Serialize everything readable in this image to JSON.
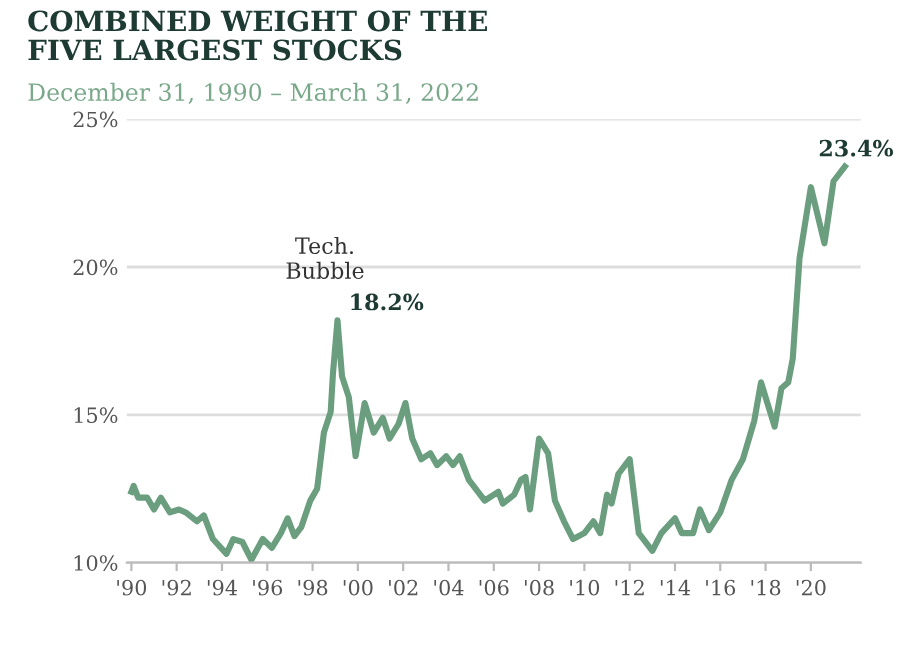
{
  "chart_data": {
    "type": "line",
    "title": "COMBINED WEIGHT OF THE\nFIVE LARGEST STOCKS",
    "subtitle": "December 31, 1990 – March 31, 2022",
    "annotations": [
      "Tech.\nBubble",
      {
        "text": "18.2%",
        "x": 1999.1,
        "y": 18.2
      },
      {
        "text": "23.4%",
        "x": 2021.5,
        "y": 23.4
      }
    ],
    "series": [
      {
        "color": "#6a9e7e",
        "x": [
          1990.0,
          1990.1,
          1990.3,
          1990.7,
          1991.0,
          1991.3,
          1991.7,
          1992.1,
          1992.4,
          1992.9,
          1993.2,
          1993.6,
          1994.2,
          1994.5,
          1994.9,
          1995.3,
          1995.8,
          1996.2,
          1996.6,
          1996.9,
          1997.2,
          1997.5,
          1997.9,
          1998.2,
          1998.5,
          1998.8,
          1998.9,
          1999.1,
          1999.3,
          1999.6,
          1999.9,
          2000.3,
          2000.7,
          2001.1,
          2001.4,
          2001.8,
          2002.1,
          2002.4,
          2002.8,
          2003.2,
          2003.5,
          2003.9,
          2004.2,
          2004.5,
          2004.9,
          2005.6,
          2006.2,
          2006.4,
          2006.9,
          2007.2,
          2007.4,
          2007.6,
          2008.0,
          2008.4,
          2008.7,
          2009.1,
          2009.5,
          2010.0,
          2010.4,
          2010.7,
          2011.0,
          2011.2,
          2011.5,
          2012.0,
          2012.4,
          2013.0,
          2013.4,
          2014.0,
          2014.3,
          2014.8,
          2015.1,
          2015.5,
          2016.0,
          2016.5,
          2017.0,
          2017.5,
          2017.8,
          2018.4,
          2018.7,
          2019.0,
          2019.2,
          2019.5,
          2020.0,
          2020.6,
          2021.0,
          2021.5
        ],
        "values": [
          12.4,
          12.6,
          12.2,
          12.2,
          11.8,
          12.2,
          11.7,
          11.8,
          11.7,
          11.4,
          11.6,
          10.8,
          10.3,
          10.8,
          10.7,
          10.1,
          10.8,
          10.5,
          11.0,
          11.5,
          10.9,
          11.2,
          12.1,
          12.5,
          14.4,
          15.1,
          16.4,
          18.2,
          16.3,
          15.6,
          13.6,
          15.4,
          14.4,
          14.9,
          14.2,
          14.7,
          15.4,
          14.2,
          13.5,
          13.7,
          13.3,
          13.6,
          13.3,
          13.6,
          12.8,
          12.1,
          12.4,
          12.0,
          12.3,
          12.8,
          12.9,
          11.8,
          14.2,
          13.7,
          12.1,
          11.4,
          10.8,
          11.0,
          11.4,
          11.0,
          12.3,
          12.0,
          13.0,
          13.5,
          11.0,
          10.4,
          11.0,
          11.5,
          11.0,
          11.0,
          11.8,
          11.1,
          11.7,
          12.8,
          13.5,
          14.8,
          16.1,
          14.6,
          15.9,
          16.1,
          16.9,
          20.3,
          22.7,
          20.8,
          22.9,
          23.4
        ]
      }
    ],
    "xlim": [
      1989.8,
      2022.2
    ],
    "ylim": [
      10,
      25
    ],
    "xticks": [
      {
        "value": 1990,
        "label": "'90"
      },
      {
        "value": 1992,
        "label": "'92"
      },
      {
        "value": 1994,
        "label": "'94"
      },
      {
        "value": 1996,
        "label": "'96"
      },
      {
        "value": 1998,
        "label": "'98"
      },
      {
        "value": 2000,
        "label": "'00"
      },
      {
        "value": 2002,
        "label": "'02"
      },
      {
        "value": 2004,
        "label": "'04"
      },
      {
        "value": 2006,
        "label": "'06"
      },
      {
        "value": 2008,
        "label": "'08"
      },
      {
        "value": 2010,
        "label": "'10"
      },
      {
        "value": 2012,
        "label": "'12"
      },
      {
        "value": 2014,
        "label": "'14"
      },
      {
        "value": 2016,
        "label": "'16"
      },
      {
        "value": 2018,
        "label": "'18"
      },
      {
        "value": 2020,
        "label": "'20"
      }
    ],
    "yticks": [
      {
        "value": 10,
        "label": "10%"
      },
      {
        "value": 15,
        "label": "15%"
      },
      {
        "value": 20,
        "label": "20%"
      },
      {
        "value": 25,
        "label": "25%"
      }
    ],
    "grid": "y",
    "line_style": "solid",
    "marker": "none"
  }
}
